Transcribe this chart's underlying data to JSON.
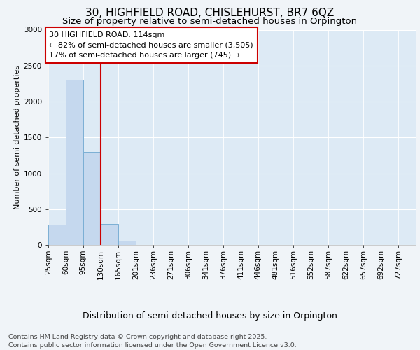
{
  "title": "30, HIGHFIELD ROAD, CHISLEHURST, BR7 6QZ",
  "subtitle": "Size of property relative to semi-detached houses in Orpington",
  "xlabel": "Distribution of semi-detached houses by size in Orpington",
  "ylabel": "Number of semi-detached properties",
  "footer_line1": "Contains HM Land Registry data © Crown copyright and database right 2025.",
  "footer_line2": "Contains public sector information licensed under the Open Government Licence v3.0.",
  "annotation_title": "30 HIGHFIELD ROAD: 114sqm",
  "annotation_line2": "← 82% of semi-detached houses are smaller (3,505)",
  "annotation_line3": "17% of semi-detached houses are larger (745) →",
  "categories": [
    "25sqm",
    "60sqm",
    "95sqm",
    "130sqm",
    "165sqm",
    "201sqm",
    "236sqm",
    "271sqm",
    "306sqm",
    "341sqm",
    "376sqm",
    "411sqm",
    "446sqm",
    "481sqm",
    "516sqm",
    "552sqm",
    "587sqm",
    "622sqm",
    "657sqm",
    "692sqm",
    "727sqm"
  ],
  "bin_edges": [
    25,
    60,
    95,
    130,
    165,
    201,
    236,
    271,
    306,
    341,
    376,
    411,
    446,
    481,
    516,
    552,
    587,
    622,
    657,
    692,
    727
  ],
  "values": [
    285,
    2300,
    1300,
    295,
    60,
    0,
    0,
    0,
    0,
    0,
    0,
    0,
    0,
    0,
    0,
    0,
    0,
    0,
    0,
    0,
    0
  ],
  "bar_color": "#c5d8ee",
  "bar_edge_color": "#7bafd4",
  "vline_color": "#cc0000",
  "vline_x": 130,
  "annotation_box_edge": "#cc0000",
  "annotation_box_bg": "#ffffff",
  "bg_color": "#f0f4f8",
  "plot_bg_color": "#ddeaf5",
  "ylim": [
    0,
    3000
  ],
  "yticks": [
    0,
    500,
    1000,
    1500,
    2000,
    2500,
    3000
  ],
  "title_fontsize": 11,
  "subtitle_fontsize": 9.5,
  "xlabel_fontsize": 9,
  "ylabel_fontsize": 8,
  "tick_fontsize": 7.5,
  "footer_fontsize": 6.8,
  "annotation_fontsize": 8
}
